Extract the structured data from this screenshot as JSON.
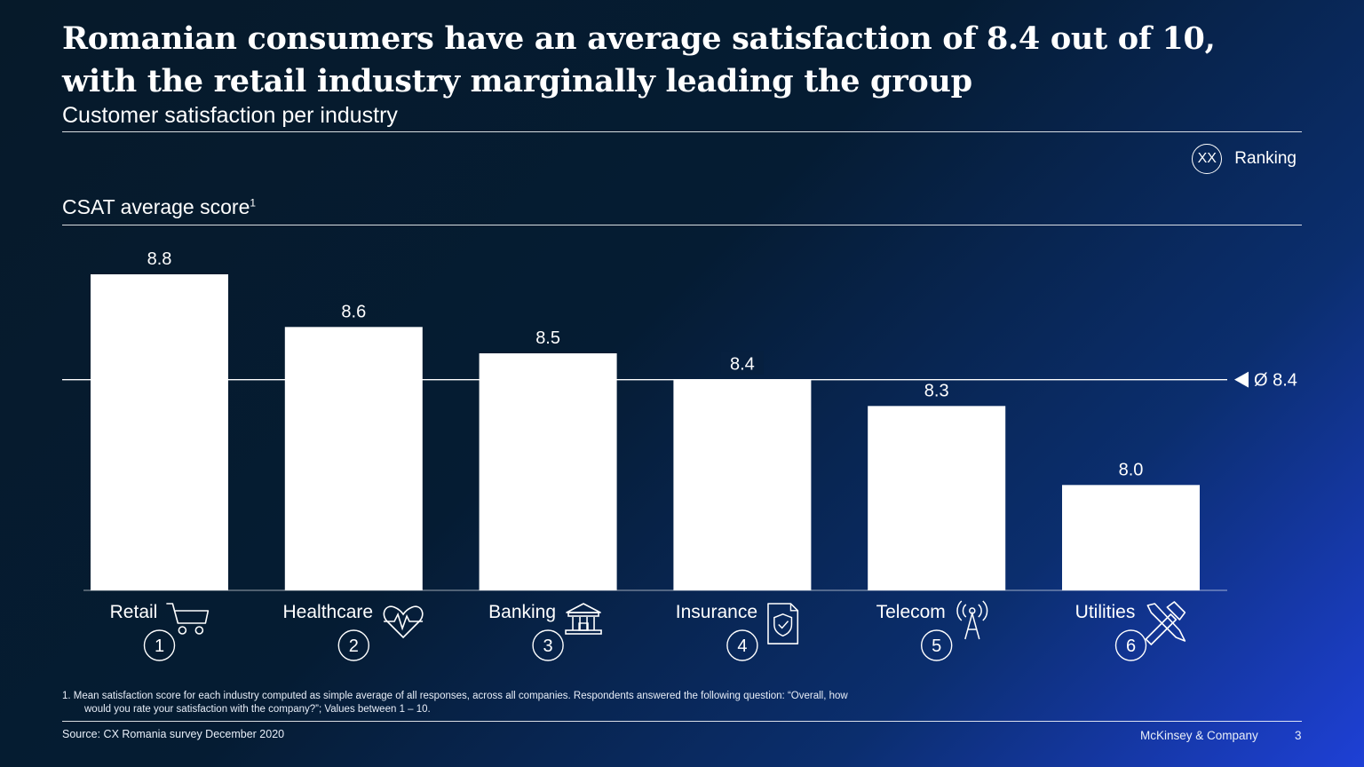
{
  "header": {
    "title": "Romanian consumers have an average satisfaction of 8.4 out of 10, with the retail industry marginally leading the group",
    "subtitle": "Customer satisfaction per industry"
  },
  "legend": {
    "symbol": "XX",
    "label": "Ranking"
  },
  "chart_data": {
    "type": "bar",
    "title": "CSAT average score",
    "ylabel_sup": "1",
    "categories": [
      "Retail",
      "Healthcare",
      "Banking",
      "Insurance",
      "Telecom",
      "Utilities"
    ],
    "values": [
      8.8,
      8.6,
      8.5,
      8.4,
      8.3,
      8.0
    ],
    "value_labels": [
      "8.8",
      "8.6",
      "8.5",
      "8.4",
      "8.3",
      "8.0"
    ],
    "ranks": [
      "1",
      "2",
      "3",
      "4",
      "5",
      "6"
    ],
    "icons": [
      "cart-icon",
      "heart-pulse-icon",
      "bank-icon",
      "insurance-shield-icon",
      "antenna-icon",
      "tools-icon"
    ],
    "average": 8.4,
    "average_label": "Ø 8.4",
    "ylim": [
      7.6,
      8.8
    ],
    "bar_color": "#ffffff"
  },
  "footnote": {
    "line1": "1. Mean satisfaction score for each industry computed as simple average of all responses, across all companies. Respondents answered the following question: “Overall, how",
    "line2": "would you rate your satisfaction with the company?”; Values between 1 – 10."
  },
  "footer": {
    "source": "Source: CX Romania survey December 2020",
    "brand": "McKinsey & Company",
    "page": "3"
  }
}
